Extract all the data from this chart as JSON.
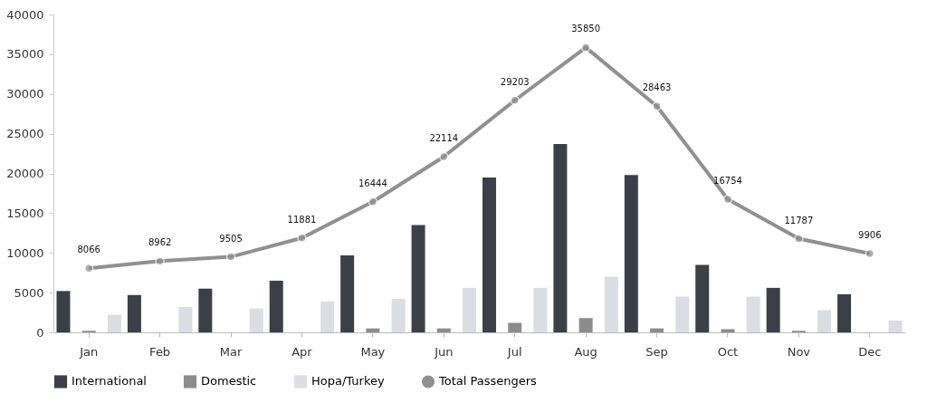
{
  "chart_data": {
    "type": "bar",
    "categories": [
      "Jan",
      "Feb",
      "Mar",
      "Apr",
      "May",
      "Jun",
      "Jul",
      "Aug",
      "Sep",
      "Oct",
      "Nov",
      "Dec"
    ],
    "series": [
      {
        "name": "International",
        "color": "#3b4048",
        "values": [
          5200,
          4700,
          5500,
          6500,
          9700,
          13500,
          19500,
          23700,
          19800,
          8500,
          5600,
          4800
        ]
      },
      {
        "name": "Domestic",
        "color": "#8c8c8c",
        "values": [
          200,
          null,
          null,
          null,
          500,
          500,
          1200,
          1800,
          500,
          400,
          200,
          null
        ]
      },
      {
        "name": "Hopa/Turkey",
        "color": "#dcdce4",
        "values": [
          2200,
          3200,
          3000,
          3900,
          4200,
          5600,
          5600,
          7000,
          4500,
          4500,
          2800,
          1500
        ]
      },
      {
        "name": "Total Passengers",
        "type": "line",
        "color": "#8f9096",
        "marker": "circle",
        "values": [
          8066,
          8962,
          9505,
          11881,
          16444,
          22114,
          29203,
          35850,
          28463,
          16754,
          11787,
          9906
        ],
        "value_labels": [
          "8066",
          "8962",
          "9505",
          "11881",
          "16444",
          "22114",
          "29203",
          "35850",
          "28463",
          "16754",
          "11787",
          "9906"
        ]
      }
    ],
    "ylim": [
      0,
      40000
    ],
    "yticks": [
      0,
      5000,
      10000,
      15000,
      20000,
      25000,
      30000,
      35000,
      40000
    ],
    "grid": false,
    "legend": "bottom"
  }
}
